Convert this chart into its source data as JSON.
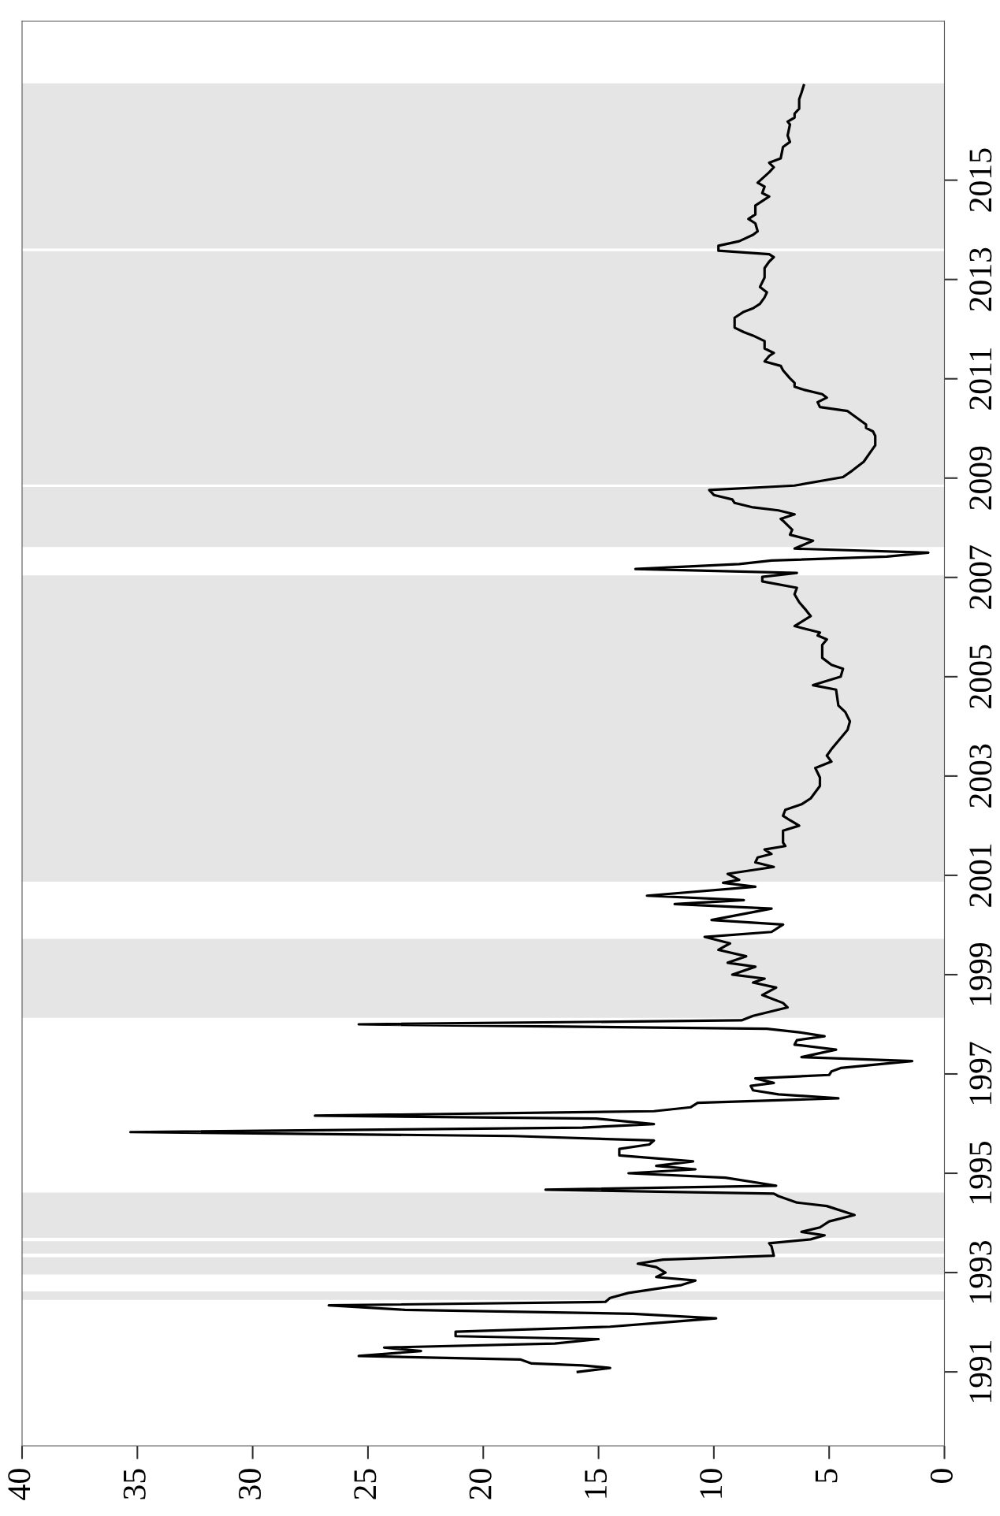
{
  "chart_data": {
    "type": "line",
    "color": "#000000",
    "grid": false,
    "marker": "none",
    "line_style": "solid",
    "values": [
      1991.0,
      1991.08,
      1991.13,
      1991.17,
      1991.25,
      1991.32,
      1991.42,
      1991.49,
      1991.57,
      1991.66,
      1991.72,
      1991.81,
      1991.91,
      1991.98,
      1992.08,
      1992.17,
      1992.25,
      1992.34,
      1992.41,
      1992.49,
      1992.59,
      1992.75,
      1992.84,
      1992.91,
      1993.0,
      1993.11,
      1993.18,
      1993.26,
      1993.34,
      1993.53,
      1993.59,
      1993.67,
      1993.75,
      1993.82,
      1993.91,
      1994.03,
      1994.16,
      1994.34,
      1994.41,
      1994.54,
      1994.59,
      1994.67,
      1994.75,
      1994.91,
      1995.0,
      1995.08,
      1995.15,
      1995.24,
      1995.36,
      1995.49,
      1995.58,
      1995.66,
      1995.75,
      1995.83,
      1995.92,
      1995.99,
      1996.1,
      1996.16,
      1996.25,
      1996.33,
      1996.42,
      1996.51,
      1996.59,
      1996.67,
      1996.76,
      1996.82,
      1996.91,
      1996.98,
      1997.05,
      1997.12,
      1997.26,
      1997.34,
      1997.49,
      1997.59,
      1997.68,
      1997.76,
      1997.84,
      1997.91,
      1998.0,
      1998.08,
      1998.17,
      1998.34,
      1998.43,
      1998.59,
      1998.74,
      1998.84,
      1998.92,
      1999.0,
      1999.16,
      1999.24,
      1999.37,
      1999.5,
      1999.63,
      1999.76,
      1999.86,
      2000.01,
      2000.1,
      2000.18,
      2000.33,
      2000.42,
      2000.5,
      2000.59,
      2000.77,
      2000.85,
      2000.91,
      2001.03,
      2001.17,
      2001.26,
      2001.36,
      2001.43,
      2001.52,
      2001.59,
      2001.66,
      2001.9,
      2002.0,
      2002.11,
      2002.2,
      2002.32,
      2002.43,
      2002.55,
      2002.8,
      2002.97,
      2003.16,
      2003.29,
      2003.41,
      2003.54,
      2003.71,
      2003.93,
      2004.1,
      2004.29,
      2004.42,
      2004.74,
      2004.83,
      2005.0,
      2005.16,
      2005.24,
      2005.38,
      2005.64,
      2005.75,
      2005.83,
      2005.89,
      2006.02,
      2006.22,
      2006.34,
      2006.5,
      2006.66,
      2006.79,
      2006.92,
      2007.01,
      2007.09,
      2007.17,
      2007.27,
      2007.34,
      2007.42,
      2007.5,
      2007.58,
      2007.74,
      2007.86,
      2007.96,
      2008.14,
      2008.18,
      2008.27,
      2008.35,
      2008.41,
      2008.5,
      2008.57,
      2008.66,
      2008.76,
      2008.85,
      2009.02,
      2009.15,
      2009.33,
      2009.53,
      2009.66,
      2009.85,
      2009.94,
      2010.01,
      2010.08,
      2010.35,
      2010.43,
      2010.53,
      2010.62,
      2010.69,
      2010.78,
      2010.84,
      2010.92,
      2011.01,
      2011.17,
      2011.26,
      2011.35,
      2011.46,
      2011.52,
      2011.61,
      2011.76,
      2011.87,
      2011.94,
      2012.03,
      2012.23,
      2012.35,
      2012.42,
      2012.51,
      2012.64,
      2012.74,
      2012.85,
      2013.04,
      2013.23,
      2013.36,
      2013.45,
      2013.51,
      2013.58,
      2013.68,
      2013.77,
      2013.9,
      2013.97,
      2014.13,
      2014.22,
      2014.31,
      2014.49,
      2014.67,
      2014.74,
      2014.87,
      2014.95,
      2015.16,
      2015.26,
      2015.35,
      2015.44,
      2015.67,
      2015.77,
      2015.9,
      2016.12,
      2016.18,
      2016.26,
      2016.34,
      2016.44,
      2016.63,
      2016.76,
      2016.91
    ],
    "x": [
      15.9,
      14.5,
      15.7,
      17.9,
      18.4,
      25.4,
      22.7,
      24.3,
      16.9,
      15.0,
      21.2,
      21.2,
      14.5,
      12.6,
      9.9,
      13.5,
      23.4,
      26.7,
      14.7,
      14.5,
      13.7,
      11.4,
      10.8,
      12.5,
      12.1,
      12.5,
      13.3,
      12.2,
      7.4,
      7.5,
      7.6,
      5.8,
      5.2,
      6.2,
      5.4,
      5.0,
      3.9,
      5.1,
      6.4,
      7.2,
      7.4,
      17.3,
      7.3,
      9.5,
      13.7,
      10.8,
      12.5,
      10.9,
      14.1,
      14.1,
      12.8,
      12.6,
      18.7,
      35.3,
      15.7,
      12.6,
      15.1,
      27.3,
      12.6,
      11.0,
      10.7,
      4.6,
      7.2,
      8.3,
      8.4,
      7.4,
      8.2,
      5.0,
      4.9,
      4.5,
      1.4,
      6.2,
      4.7,
      6.5,
      6.4,
      5.2,
      6.3,
      7.7,
      25.4,
      8.8,
      8.3,
      6.8,
      7.0,
      7.9,
      7.3,
      8.3,
      7.8,
      9.2,
      8.2,
      9.4,
      8.6,
      9.8,
      9.3,
      10.4,
      7.5,
      7.0,
      10.1,
      9.2,
      7.5,
      11.7,
      8.7,
      12.9,
      8.2,
      9.6,
      8.9,
      9.4,
      7.4,
      8.2,
      8.1,
      7.5,
      7.8,
      6.9,
      7.0,
      7.0,
      6.3,
      6.7,
      7.0,
      6.9,
      6.2,
      5.8,
      5.4,
      5.4,
      5.6,
      4.9,
      5.1,
      4.9,
      4.6,
      4.2,
      4.1,
      4.3,
      4.6,
      4.7,
      5.7,
      4.5,
      4.4,
      4.9,
      5.3,
      5.3,
      5.1,
      5.5,
      5.4,
      6.5,
      5.8,
      6.0,
      6.3,
      6.5,
      6.4,
      7.9,
      7.9,
      6.4,
      13.4,
      8.9,
      7.5,
      2.5,
      0.7,
      6.5,
      5.7,
      6.7,
      6.6,
      7.0,
      7.1,
      6.5,
      7.2,
      8.3,
      9.1,
      9.2,
      10.0,
      10.2,
      6.5,
      4.4,
      4.0,
      3.5,
      3.2,
      3.0,
      3.0,
      3.1,
      3.4,
      3.4,
      4.2,
      5.4,
      5.5,
      5.1,
      5.3,
      6.1,
      6.5,
      6.5,
      6.7,
      7.0,
      7.1,
      7.8,
      7.6,
      7.4,
      7.8,
      7.8,
      8.3,
      8.7,
      9.1,
      9.1,
      8.7,
      8.3,
      8.0,
      7.8,
      7.7,
      8.0,
      7.8,
      7.8,
      7.6,
      7.4,
      7.6,
      9.8,
      9.8,
      8.9,
      8.3,
      8.1,
      8.2,
      8.5,
      8.2,
      8.2,
      7.6,
      7.9,
      7.8,
      8.1,
      7.6,
      7.4,
      7.6,
      7.1,
      7.0,
      6.7,
      6.8,
      6.7,
      6.8,
      6.5,
      6.5,
      6.3,
      6.3,
      6.2,
      6.1
    ],
    "ylim": [
      1989.51,
      2018.2
    ],
    "yticks": [
      1991,
      1993,
      1995,
      1997,
      1999,
      2001,
      2003,
      2005,
      2007,
      2009,
      2011,
      2013,
      2015
    ],
    "xlim": [
      40,
      0
    ],
    "xticks": [
      0,
      5,
      10,
      15,
      20,
      25,
      30,
      35,
      40
    ],
    "bands": [
      {
        "axis": "y",
        "from": 1992.45,
        "to": 1992.62,
        "color": "#e5e5e5"
      },
      {
        "axis": "y",
        "from": 1992.96,
        "to": 1993.31,
        "color": "#e5e5e5"
      },
      {
        "axis": "y",
        "from": 1993.38,
        "to": 1993.63,
        "color": "#e5e5e5"
      },
      {
        "axis": "y",
        "from": 1993.7,
        "to": 1994.61,
        "color": "#e5e5e5"
      },
      {
        "axis": "y",
        "from": 1998.13,
        "to": 1999.72,
        "color": "#e5e5e5"
      },
      {
        "axis": "y",
        "from": 2000.87,
        "to": 2007.04,
        "color": "#e5e5e5"
      },
      {
        "axis": "y",
        "from": 2007.61,
        "to": 2008.82,
        "color": "#e5e5e5"
      },
      {
        "axis": "y",
        "from": 2008.87,
        "to": 2013.57,
        "color": "#e5e5e5"
      },
      {
        "axis": "y",
        "from": 2013.62,
        "to": 2016.95,
        "color": "#e5e5e5"
      }
    ]
  }
}
